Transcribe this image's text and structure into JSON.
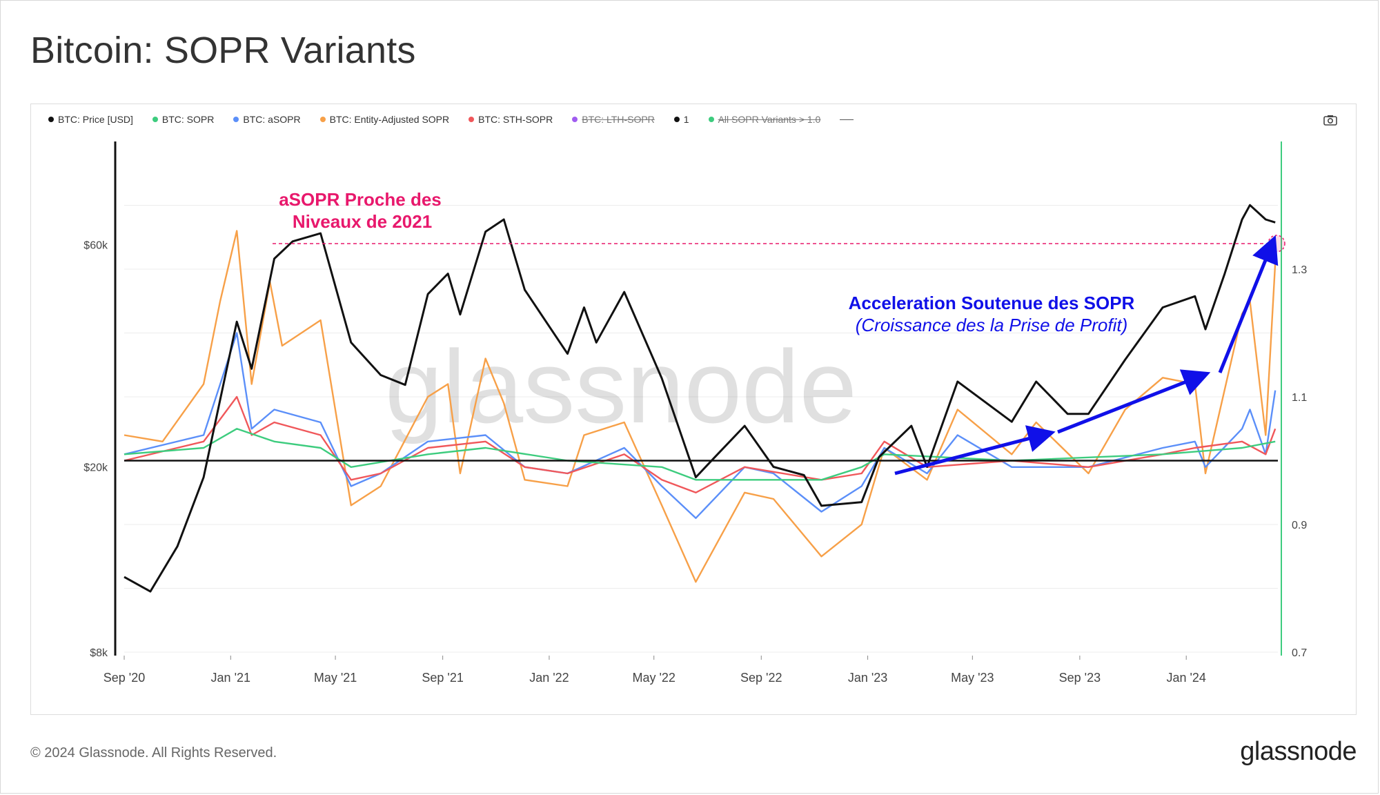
{
  "title": "Bitcoin: SOPR Variants",
  "legend": [
    {
      "label": "BTC: Price [USD]",
      "color": "#111111",
      "active": true
    },
    {
      "label": "BTC: SOPR",
      "color": "#3dcc7e",
      "active": true
    },
    {
      "label": "BTC: aSOPR",
      "color": "#5b8ff9",
      "active": true
    },
    {
      "label": "BTC: Entity-Adjusted SOPR",
      "color": "#f7a048",
      "active": true
    },
    {
      "label": "BTC: STH-SOPR",
      "color": "#f0575a",
      "active": true
    },
    {
      "label": "BTC: LTH-SOPR",
      "color": "#a05cf0",
      "active": false
    },
    {
      "label": "1",
      "color": "#111111",
      "active": true
    },
    {
      "label": "All SOPR Variants > 1.0",
      "color": "#3dcc7e",
      "active": false
    }
  ],
  "watermark": "glassnode",
  "footer": {
    "copyright": "© 2024 Glassnode. All Rights Reserved.",
    "logo": "glassnode"
  },
  "annotations": {
    "asopr_line1": "aSOPR Proche des",
    "asopr_line2": "Niveaux de 2021",
    "accel_line1": "Acceleration Soutenue des SOPR",
    "accel_line2": "(Croissance des la Prise de Profit)"
  },
  "colors": {
    "price": "#111111",
    "sopr": "#3dcc7e",
    "asopr": "#5b8ff9",
    "entity_sopr": "#f7a048",
    "sth_sopr": "#f0575a",
    "annotation_pink": "#e8186c",
    "annotation_blue": "#1010e8",
    "ref_line_green": "#3dcc7e"
  },
  "chart_data": {
    "type": "line",
    "x_range": [
      "2020-09-01",
      "2024-04-15"
    ],
    "x_ticks": [
      "Sep '20",
      "Jan '21",
      "May '21",
      "Sep '21",
      "Jan '22",
      "May '22",
      "Sep '22",
      "Jan '23",
      "May '23",
      "Sep '23",
      "Jan '24"
    ],
    "y_left": {
      "scale": "log",
      "range": [
        8000,
        100000
      ],
      "ticks": [
        {
          "value": 8000,
          "label": "$8k"
        },
        {
          "value": 20000,
          "label": "$20k"
        },
        {
          "value": 60000,
          "label": "$60k"
        }
      ]
    },
    "y_right": {
      "scale": "linear",
      "range": [
        0.7,
        1.5
      ],
      "ticks": [
        0.7,
        0.9,
        1.1,
        1.3
      ]
    },
    "reference_line": {
      "name": "1",
      "value": 1.0
    },
    "asopr_reference_level": 1.34,
    "series": [
      {
        "name": "BTC: Price [USD]",
        "axis": "left",
        "x": [
          "2020-09-01",
          "2020-10-01",
          "2020-11-01",
          "2020-12-01",
          "2021-01-08",
          "2021-01-25",
          "2021-02-20",
          "2021-03-13",
          "2021-04-14",
          "2021-05-19",
          "2021-06-22",
          "2021-07-20",
          "2021-08-15",
          "2021-09-07",
          "2021-09-21",
          "2021-10-20",
          "2021-11-10",
          "2021-12-04",
          "2022-01-22",
          "2022-02-10",
          "2022-02-24",
          "2022-03-28",
          "2022-05-10",
          "2022-06-18",
          "2022-07-10",
          "2022-08-13",
          "2022-09-15",
          "2022-10-20",
          "2022-11-09",
          "2022-12-25",
          "2023-01-14",
          "2023-02-20",
          "2023-03-10",
          "2023-04-14",
          "2023-06-15",
          "2023-07-13",
          "2023-08-18",
          "2023-09-11",
          "2023-10-23",
          "2023-12-05",
          "2024-01-11",
          "2024-01-23",
          "2024-02-14",
          "2024-03-05",
          "2024-03-14",
          "2024-04-01",
          "2024-04-12"
        ],
        "values": [
          11600,
          10800,
          13500,
          19000,
          41000,
          32500,
          56000,
          61000,
          63500,
          37000,
          31500,
          30000,
          47000,
          52000,
          42500,
          64000,
          68000,
          48000,
          35000,
          44000,
          37000,
          47500,
          31000,
          19000,
          21000,
          24500,
          20000,
          19200,
          16500,
          16800,
          21000,
          24500,
          20000,
          30500,
          25000,
          30500,
          26000,
          26000,
          34000,
          44000,
          46500,
          39500,
          52000,
          68000,
          73000,
          68000,
          67000
        ]
      },
      {
        "name": "BTC: Entity-Adjusted SOPR",
        "axis": "right",
        "x": [
          "2020-09-01",
          "2020-10-15",
          "2020-12-01",
          "2020-12-20",
          "2021-01-08",
          "2021-01-25",
          "2021-02-15",
          "2021-03-01",
          "2021-04-14",
          "2021-05-19",
          "2021-06-22",
          "2021-08-15",
          "2021-09-07",
          "2021-09-21",
          "2021-10-20",
          "2021-11-10",
          "2021-12-04",
          "2022-01-22",
          "2022-02-10",
          "2022-03-28",
          "2022-05-10",
          "2022-06-18",
          "2022-08-13",
          "2022-09-15",
          "2022-11-09",
          "2022-12-25",
          "2023-01-20",
          "2023-03-10",
          "2023-04-14",
          "2023-06-15",
          "2023-07-13",
          "2023-09-11",
          "2023-10-23",
          "2023-12-05",
          "2024-01-11",
          "2024-01-23",
          "2024-03-05",
          "2024-03-14",
          "2024-04-01",
          "2024-04-12"
        ],
        "values": [
          1.04,
          1.03,
          1.12,
          1.25,
          1.36,
          1.12,
          1.28,
          1.18,
          1.22,
          0.93,
          0.96,
          1.1,
          1.12,
          0.98,
          1.16,
          1.09,
          0.97,
          0.96,
          1.04,
          1.06,
          0.93,
          0.81,
          0.95,
          0.94,
          0.85,
          0.9,
          1.02,
          0.97,
          1.08,
          1.01,
          1.06,
          0.98,
          1.08,
          1.13,
          1.12,
          0.98,
          1.23,
          1.25,
          1.04,
          1.31
        ]
      },
      {
        "name": "BTC: aSOPR",
        "axis": "right",
        "x": [
          "2020-09-01",
          "2020-12-01",
          "2021-01-08",
          "2021-01-25",
          "2021-02-20",
          "2021-04-14",
          "2021-05-19",
          "2021-06-22",
          "2021-08-15",
          "2021-10-20",
          "2021-12-04",
          "2022-01-22",
          "2022-03-28",
          "2022-05-10",
          "2022-06-18",
          "2022-08-13",
          "2022-09-15",
          "2022-11-09",
          "2022-12-25",
          "2023-01-20",
          "2023-03-10",
          "2023-04-14",
          "2023-06-15",
          "2023-09-11",
          "2023-12-05",
          "2024-01-11",
          "2024-01-23",
          "2024-03-05",
          "2024-03-14",
          "2024-04-01",
          "2024-04-12"
        ],
        "values": [
          1.01,
          1.04,
          1.2,
          1.05,
          1.08,
          1.06,
          0.96,
          0.98,
          1.03,
          1.04,
          0.99,
          0.98,
          1.02,
          0.96,
          0.91,
          0.99,
          0.98,
          0.92,
          0.96,
          1.02,
          0.98,
          1.04,
          0.99,
          0.99,
          1.02,
          1.03,
          0.99,
          1.05,
          1.08,
          1.01,
          1.11
        ]
      },
      {
        "name": "BTC: STH-SOPR",
        "axis": "right",
        "x": [
          "2020-09-01",
          "2020-12-01",
          "2021-01-08",
          "2021-01-25",
          "2021-02-20",
          "2021-04-14",
          "2021-05-19",
          "2021-06-22",
          "2021-08-15",
          "2021-10-20",
          "2021-12-04",
          "2022-01-22",
          "2022-03-28",
          "2022-05-10",
          "2022-06-18",
          "2022-08-13",
          "2022-11-09",
          "2022-12-25",
          "2023-01-20",
          "2023-03-10",
          "2023-06-15",
          "2023-09-11",
          "2023-12-05",
          "2024-01-11",
          "2024-03-05",
          "2024-04-01",
          "2024-04-12"
        ],
        "values": [
          1.0,
          1.03,
          1.1,
          1.04,
          1.06,
          1.04,
          0.97,
          0.98,
          1.02,
          1.03,
          0.99,
          0.98,
          1.01,
          0.97,
          0.95,
          0.99,
          0.97,
          0.98,
          1.03,
          0.99,
          1.0,
          0.99,
          1.01,
          1.02,
          1.03,
          1.01,
          1.05
        ]
      },
      {
        "name": "BTC: SOPR",
        "axis": "right",
        "x": [
          "2020-09-01",
          "2020-12-01",
          "2021-01-08",
          "2021-02-20",
          "2021-04-14",
          "2021-05-19",
          "2021-08-15",
          "2021-10-20",
          "2022-01-22",
          "2022-05-10",
          "2022-06-18",
          "2022-11-09",
          "2022-12-25",
          "2023-01-20",
          "2023-06-15",
          "2023-12-05",
          "2024-03-05",
          "2024-04-12"
        ],
        "values": [
          1.01,
          1.02,
          1.05,
          1.03,
          1.02,
          0.99,
          1.01,
          1.02,
          1.0,
          0.99,
          0.97,
          0.97,
          0.99,
          1.01,
          1.0,
          1.01,
          1.02,
          1.03
        ]
      }
    ]
  }
}
